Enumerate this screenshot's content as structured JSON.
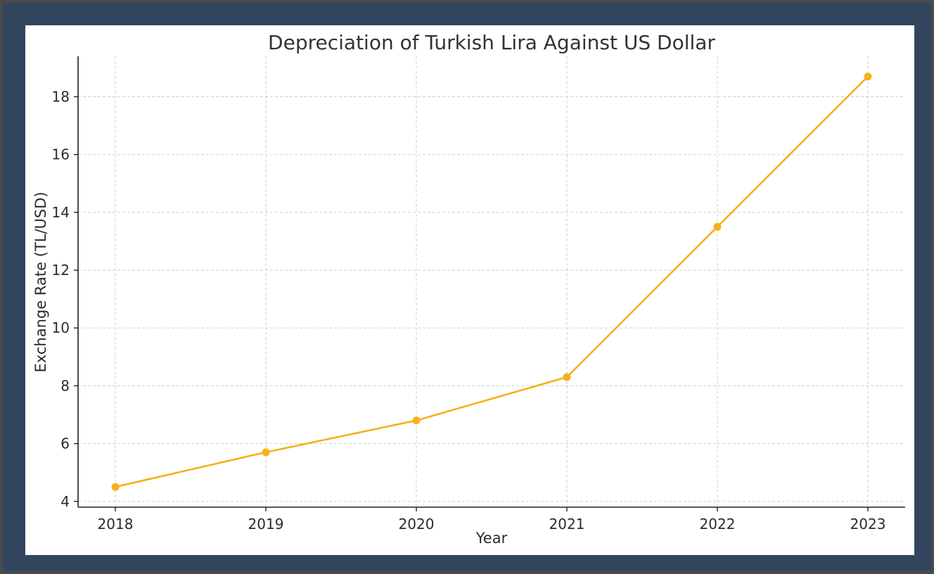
{
  "colors": {
    "series": "#f5b01a",
    "grid": "#cfcfcf",
    "axis": "#222222",
    "frame": "#34465f",
    "background": "#ffffff"
  },
  "chart_data": {
    "type": "line",
    "title": "Depreciation of Turkish Lira Against US Dollar",
    "xlabel": "Year",
    "ylabel": "Exchange Rate (TL/USD)",
    "x": [
      "2018",
      "2019",
      "2020",
      "2021",
      "2022",
      "2023"
    ],
    "series": [
      {
        "values": [
          4.5,
          5.7,
          6.8,
          8.3,
          13.5,
          18.7
        ]
      }
    ],
    "yticks": [
      4,
      6,
      8,
      10,
      12,
      14,
      16,
      18
    ],
    "ylim": [
      3.8,
      19.4
    ],
    "grid": true,
    "grid_style": "dashed",
    "markers": "circle",
    "legend": "none"
  }
}
